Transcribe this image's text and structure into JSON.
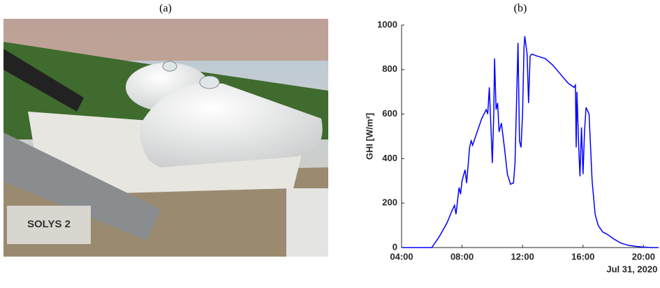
{
  "panel_labels": [
    "(a)",
    "(b)"
  ],
  "photo_text": "SOLYS 2",
  "chart_data": {
    "type": "line",
    "ylabel": "GHI [W/m²]",
    "xlabel": "Jul 31, 2020",
    "color": "#0000ff",
    "x": [
      4,
      6,
      6.5,
      7.0,
      7.3,
      7.5,
      7.6,
      7.8,
      7.9,
      8.0,
      8.2,
      8.3,
      8.5,
      8.6,
      8.7,
      9.0,
      9.3,
      9.6,
      9.7,
      9.8,
      9.9,
      10.0,
      10.1,
      10.15,
      10.25,
      10.35,
      10.45,
      10.6,
      10.8,
      11.0,
      11.2,
      11.4,
      11.5,
      11.7,
      11.8,
      11.9,
      12.0,
      12.1,
      12.15,
      12.3,
      12.4,
      12.5,
      12.6,
      13.0,
      13.5,
      14.0,
      14.5,
      15.0,
      15.4,
      15.5,
      15.55,
      15.6,
      15.7,
      15.8,
      15.9,
      16.0,
      16.1,
      16.2,
      16.4,
      16.5,
      16.6,
      16.8,
      17.0,
      17.3,
      17.6,
      18.0,
      18.5,
      19.0,
      19.5,
      20.0,
      20.5,
      21.0
    ],
    "values": [
      0,
      0,
      50,
      110,
      160,
      190,
      150,
      270,
      240,
      300,
      350,
      290,
      450,
      480,
      460,
      520,
      580,
      620,
      600,
      720,
      560,
      380,
      600,
      850,
      620,
      650,
      520,
      560,
      450,
      330,
      285,
      290,
      380,
      920,
      480,
      450,
      600,
      900,
      950,
      870,
      650,
      860,
      870,
      860,
      850,
      820,
      780,
      740,
      720,
      730,
      450,
      700,
      480,
      320,
      540,
      330,
      520,
      630,
      600,
      450,
      300,
      150,
      100,
      70,
      60,
      40,
      20,
      10,
      5,
      2,
      0,
      0
    ],
    "xlim": [
      4,
      21
    ],
    "xticks": [
      {
        "value": 4,
        "label": "04:00"
      },
      {
        "value": 8,
        "label": "08:00"
      },
      {
        "value": 12,
        "label": "12:00"
      },
      {
        "value": 16,
        "label": "16:00"
      },
      {
        "value": 20,
        "label": "20:00"
      }
    ],
    "ylim": [
      0,
      1000
    ],
    "yticks": [
      0,
      200,
      400,
      600,
      800,
      1000
    ]
  }
}
